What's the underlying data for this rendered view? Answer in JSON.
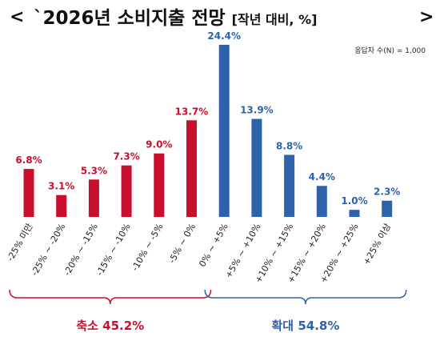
{
  "header": {
    "nav_prev": "<",
    "title": "`2026년 소비지출 전망",
    "title_suffix": "[작년 대비, %]",
    "nav_next": ">"
  },
  "note": "응답자 수(N) = 1,000",
  "colors": {
    "decrease": "#c8102e",
    "increase": "#2f62a8",
    "title": "#111111"
  },
  "chart_data": {
    "type": "bar",
    "title": "`2026년 소비지출 전망[작년 대비, %]",
    "categories": [
      "-25% 미만",
      "-25% ~ -20%",
      "-20% ~ -15%",
      "-15% ~ -10%",
      "-10% ~ -5%",
      "-5% ~ 0%",
      "0% ~ +5%",
      "+5% ~ +10%",
      "+10% ~ +15%",
      "+15% ~ +20%",
      "+20% ~ +25%",
      "+25% 이상"
    ],
    "values": [
      6.8,
      3.1,
      5.3,
      7.3,
      9.0,
      13.7,
      24.4,
      13.9,
      8.8,
      4.4,
      1.0,
      2.3
    ],
    "value_labels": [
      "6.8%",
      "3.1%",
      "5.3%",
      "7.3%",
      "9.0%",
      "13.7%",
      "24.4%",
      "13.9%",
      "8.8%",
      "4.4%",
      "1.0%",
      "2.3%"
    ],
    "groups": [
      {
        "label": "축소 45.2%",
        "from": 0,
        "to": 5,
        "color_key": "decrease"
      },
      {
        "label": "확대 54.8%",
        "from": 6,
        "to": 11,
        "color_key": "increase"
      }
    ],
    "ylim": [
      0,
      24.4
    ],
    "grid": false
  }
}
